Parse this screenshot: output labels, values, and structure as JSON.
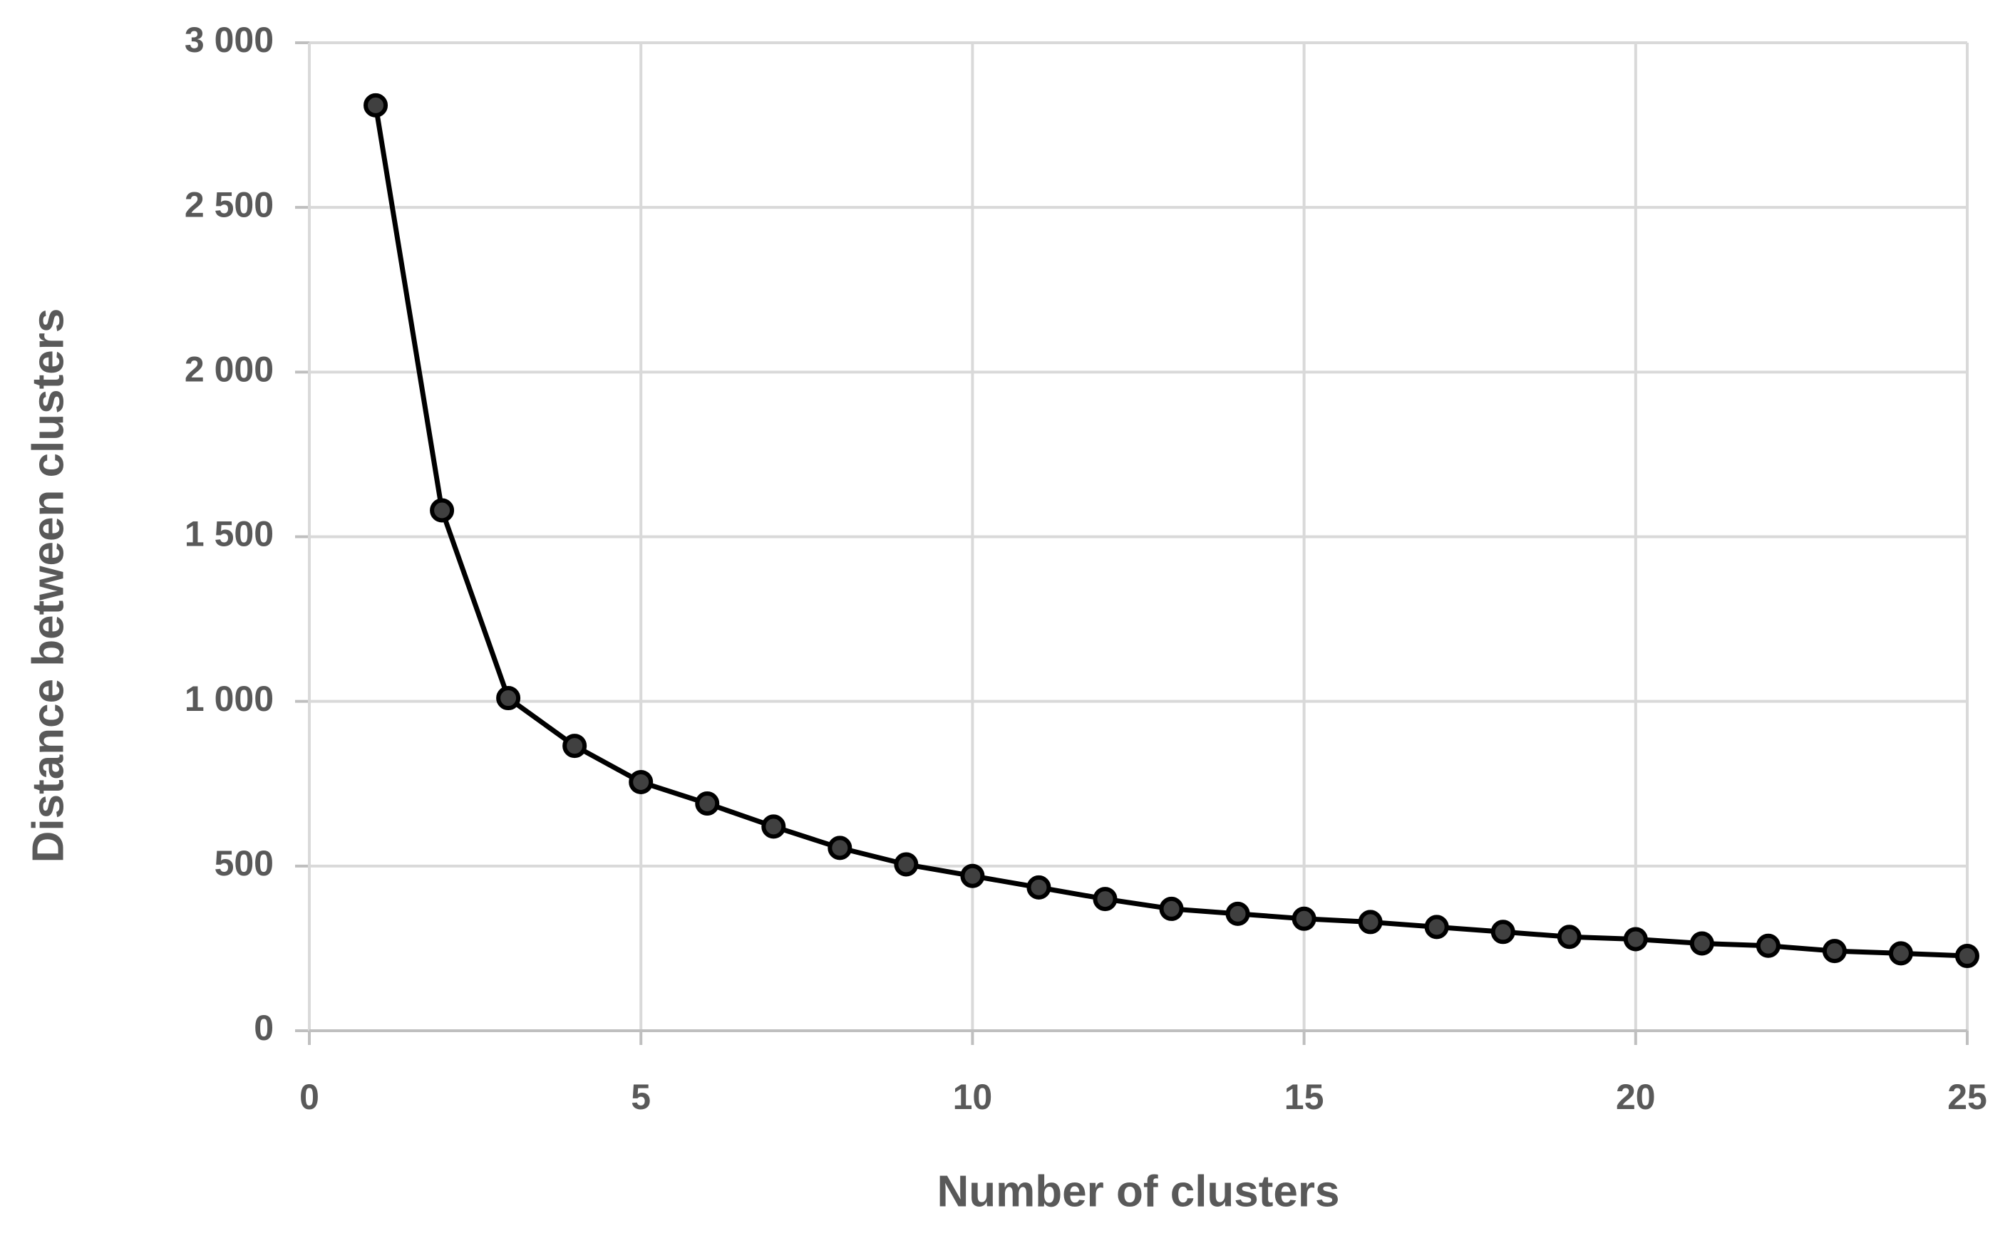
{
  "chart_data": {
    "type": "line",
    "x_label": "Number of clusters",
    "y_label": "Distance between clusters",
    "x": [
      1,
      2,
      3,
      4,
      5,
      6,
      7,
      8,
      9,
      10,
      11,
      12,
      13,
      14,
      15,
      16,
      17,
      18,
      19,
      20,
      21,
      22,
      23,
      24,
      25
    ],
    "values": [
      2810,
      1580,
      1010,
      865,
      755,
      690,
      620,
      555,
      505,
      470,
      435,
      400,
      370,
      355,
      340,
      330,
      315,
      300,
      285,
      278,
      265,
      258,
      242,
      235,
      227
    ],
    "color": "#000000",
    "marker_color": "#404040",
    "xlim": [
      0,
      25
    ],
    "xticks": [
      0,
      5,
      10,
      15,
      20,
      25
    ],
    "ylim": [
      0,
      3000
    ],
    "yticks": [
      0,
      500,
      {
        "value": 1000,
        "label": "1 000"
      },
      {
        "value": 1500,
        "label": "1 500"
      },
      {
        "value": 2000,
        "label": "2 000"
      },
      {
        "value": 2500,
        "label": "2 500"
      },
      {
        "value": 3000,
        "label": "3 000"
      }
    ],
    "grid": true
  }
}
